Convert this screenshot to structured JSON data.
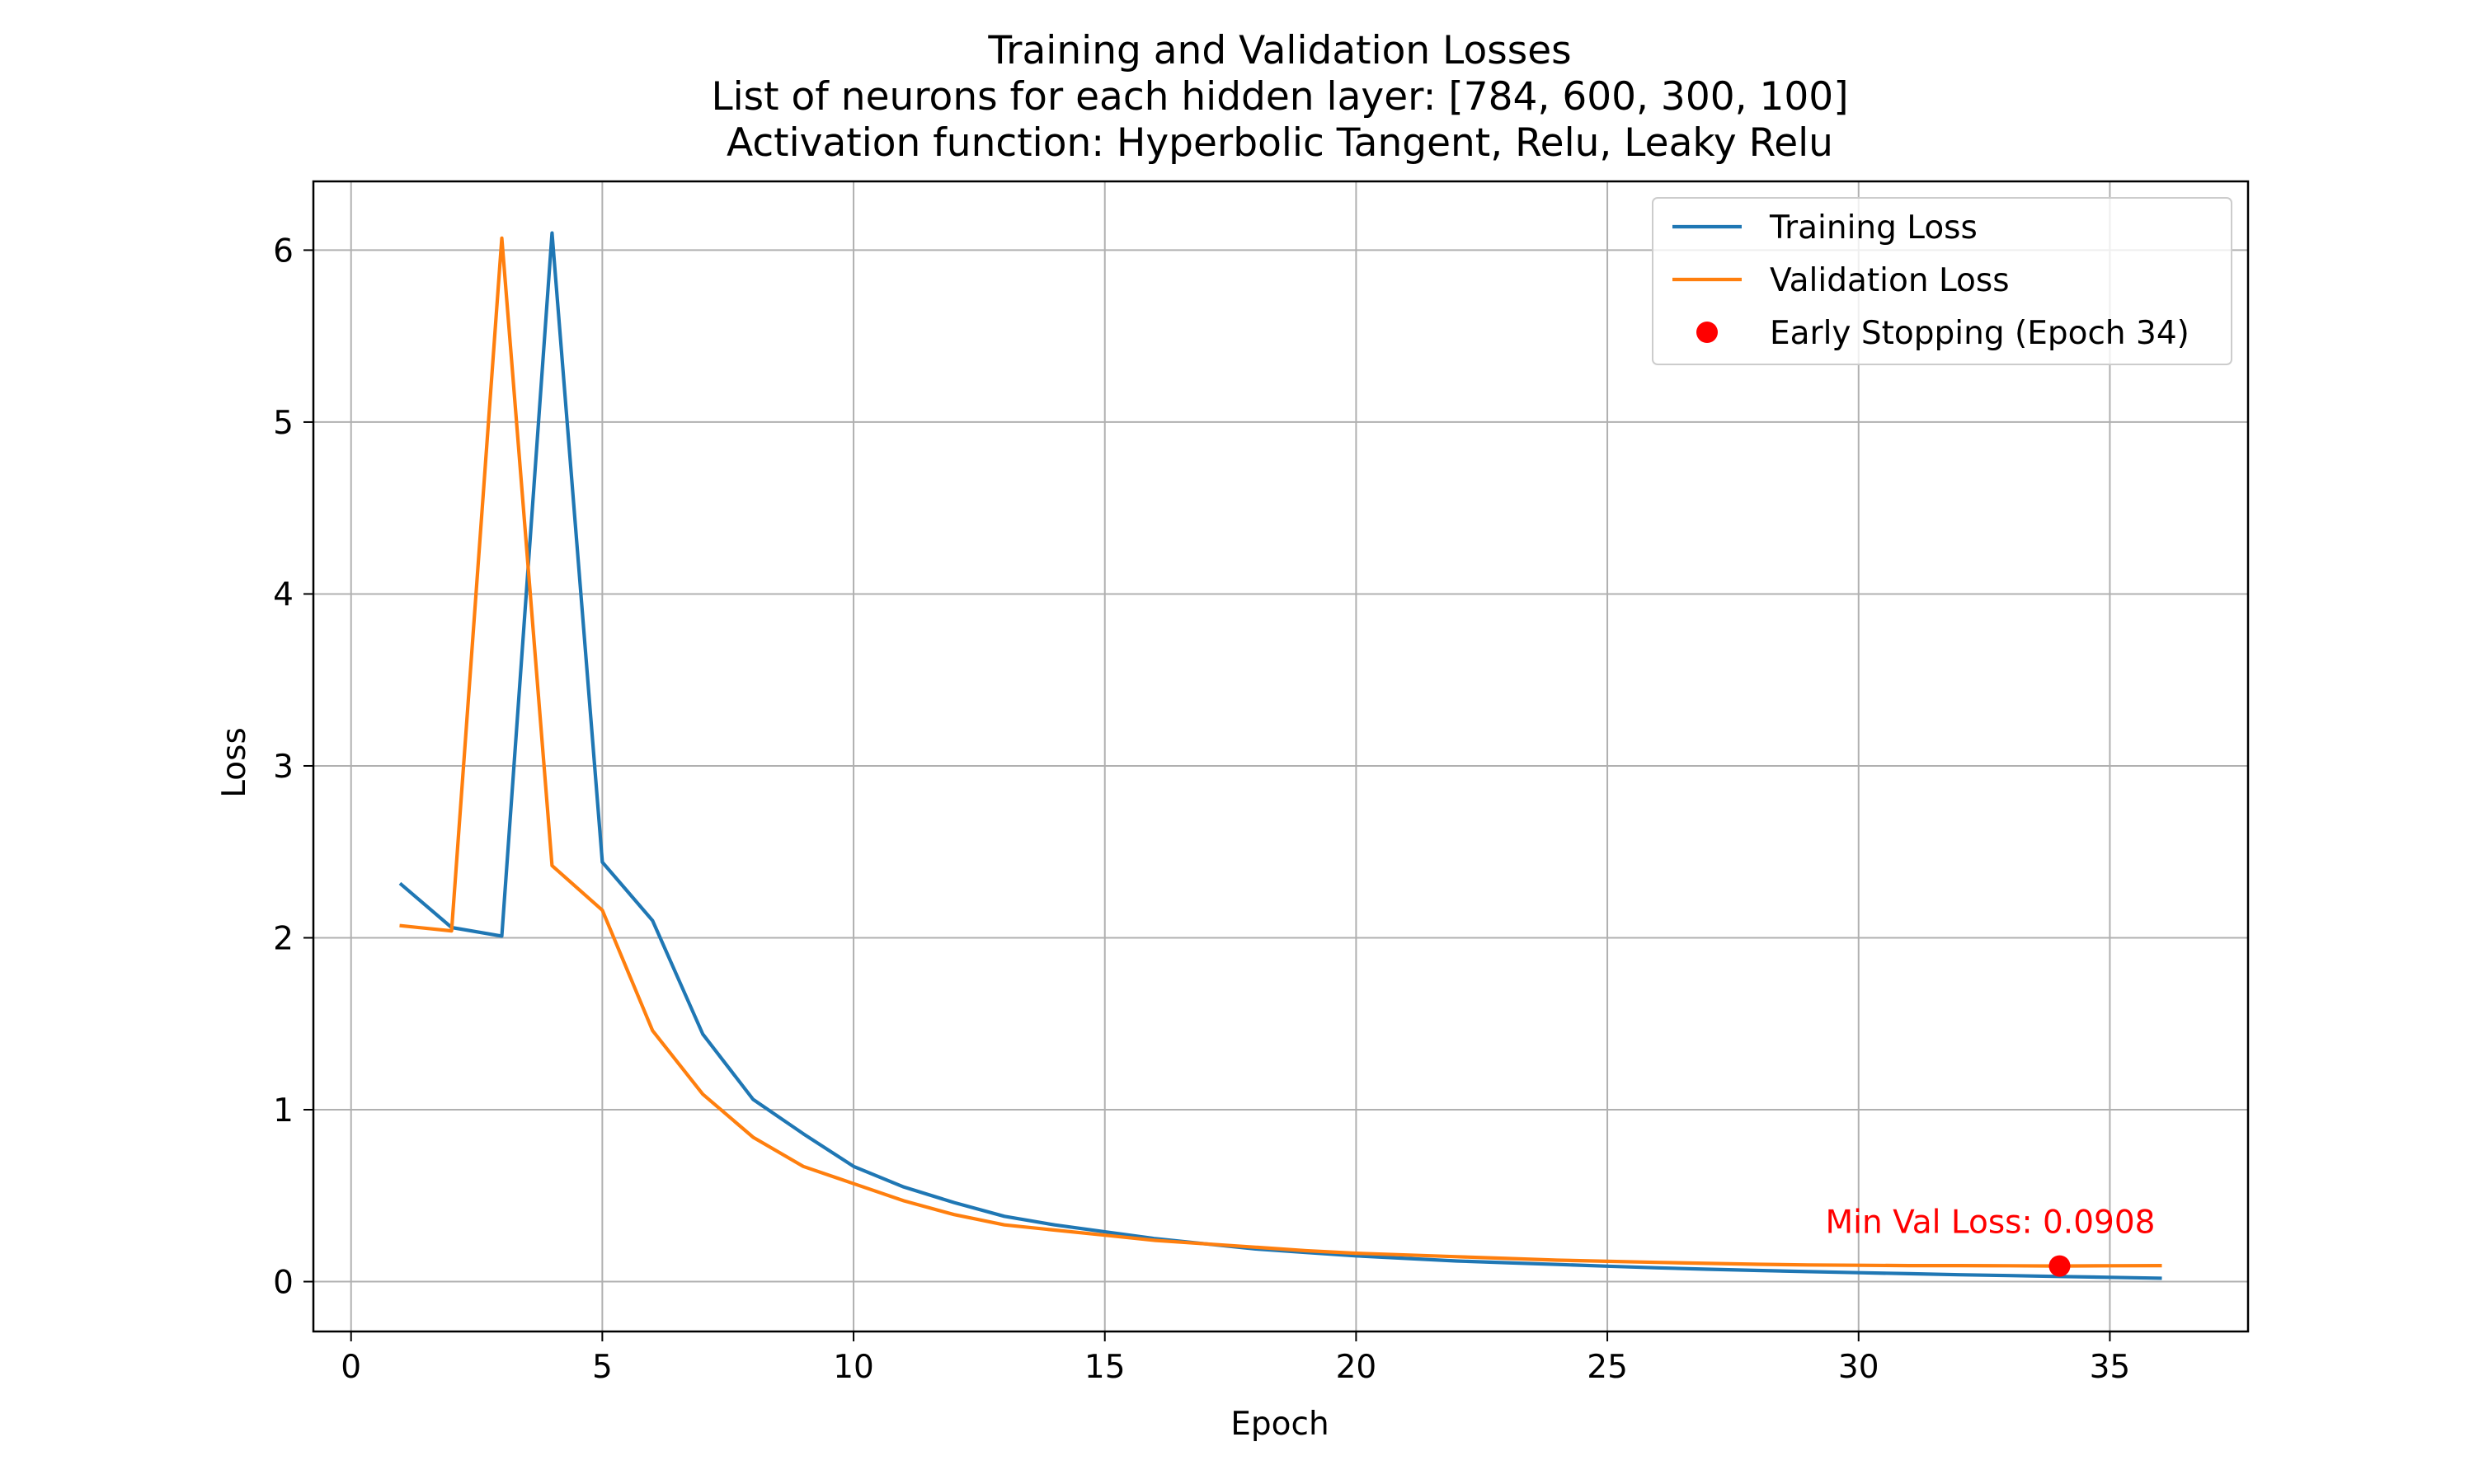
{
  "chart_data": {
    "type": "line",
    "title": [
      "Training and Validation Losses",
      "List of neurons for each hidden layer: [784, 600, 300, 100]",
      "Activation function: Hyperbolic Tangent, Relu, Leaky Relu"
    ],
    "xlabel": "Epoch",
    "ylabel": "Loss",
    "xlim": [
      -0.75,
      37.75
    ],
    "ylim": [
      -0.29,
      6.4
    ],
    "xticks": [
      0,
      5,
      10,
      15,
      20,
      25,
      30,
      35
    ],
    "yticks": [
      0,
      1,
      2,
      3,
      4,
      5,
      6
    ],
    "grid": true,
    "legend_position": "top-right",
    "series": [
      {
        "name": "Training Loss",
        "color": "#1f77b4",
        "x": [
          1,
          2,
          3,
          4,
          5,
          6,
          7,
          8,
          9,
          10,
          11,
          12,
          13,
          14,
          15,
          16,
          17,
          18,
          19,
          20,
          21,
          22,
          23,
          24,
          25,
          26,
          27,
          28,
          29,
          30,
          31,
          32,
          33,
          34,
          35,
          36
        ],
        "y": [
          2.31,
          2.06,
          2.01,
          6.1,
          2.44,
          2.1,
          1.44,
          1.06,
          0.86,
          0.67,
          0.55,
          0.46,
          0.38,
          0.33,
          0.29,
          0.25,
          0.22,
          0.19,
          0.17,
          0.15,
          0.135,
          0.12,
          0.11,
          0.1,
          0.09,
          0.08,
          0.072,
          0.065,
          0.058,
          0.052,
          0.046,
          0.04,
          0.035,
          0.03,
          0.025,
          0.02
        ]
      },
      {
        "name": "Validation Loss",
        "color": "#ff7f0e",
        "x": [
          1,
          2,
          3,
          4,
          5,
          6,
          7,
          8,
          9,
          10,
          11,
          12,
          13,
          14,
          15,
          16,
          17,
          18,
          19,
          20,
          21,
          22,
          23,
          24,
          25,
          26,
          27,
          28,
          29,
          30,
          31,
          32,
          33,
          34,
          35,
          36
        ],
        "y": [
          2.07,
          2.04,
          6.07,
          2.42,
          2.16,
          1.46,
          1.09,
          0.84,
          0.67,
          0.57,
          0.47,
          0.39,
          0.33,
          0.3,
          0.27,
          0.24,
          0.22,
          0.2,
          0.18,
          0.165,
          0.155,
          0.145,
          0.135,
          0.125,
          0.118,
          0.112,
          0.106,
          0.101,
          0.097,
          0.095,
          0.093,
          0.093,
          0.092,
          0.0908,
          0.092,
          0.093
        ]
      }
    ],
    "markers": [
      {
        "name": "Early Stopping (Epoch 34)",
        "x": 34,
        "y": 0.0908,
        "color": "#ff0000"
      }
    ],
    "annotations": [
      {
        "text": "Min Val Loss: 0.0908",
        "x": 34,
        "y": 0.0908,
        "color": "#ff0000"
      }
    ]
  }
}
